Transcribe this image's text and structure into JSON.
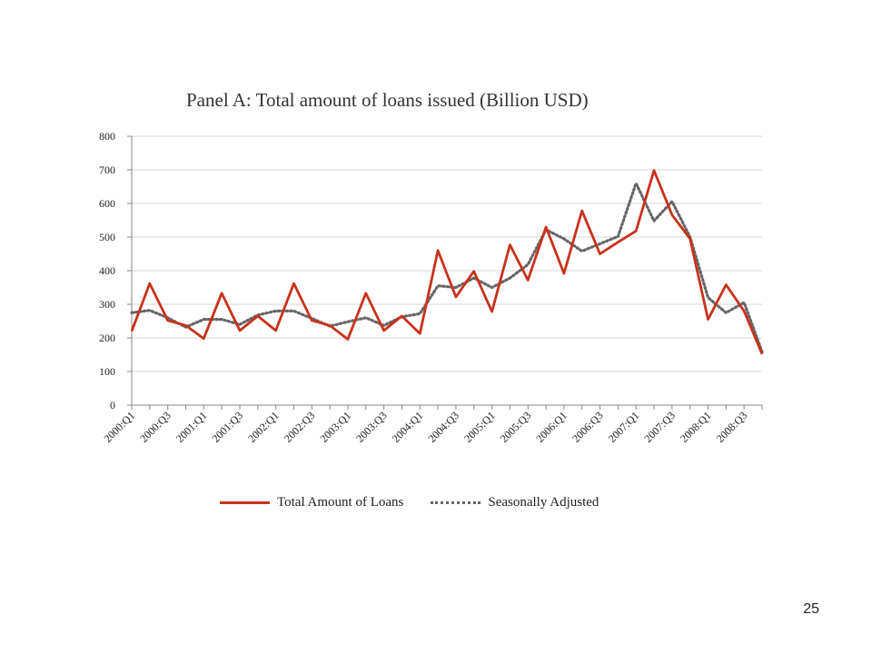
{
  "page_number": "25",
  "chart_data": {
    "type": "line",
    "title": "Panel A: Total amount of loans issued (Billion USD)",
    "xlabel": "",
    "ylabel": "",
    "ylim": [
      0,
      800
    ],
    "yticks": [
      0,
      100,
      200,
      300,
      400,
      500,
      600,
      700,
      800
    ],
    "grid": true,
    "legend_position": "bottom",
    "categories": [
      "2000:Q1",
      "2000:Q2",
      "2000:Q3",
      "2000:Q4",
      "2001:Q1",
      "2001:Q2",
      "2001:Q3",
      "2001:Q4",
      "2002:Q1",
      "2002:Q2",
      "2002:Q3",
      "2002:Q4",
      "2003:Q1",
      "2003:Q2",
      "2003:Q3",
      "2003:Q4",
      "2004:Q1",
      "2004:Q2",
      "2004:Q3",
      "2004:Q4",
      "2005:Q1",
      "2005:Q2",
      "2005:Q3",
      "2005:Q4",
      "2006:Q1",
      "2006:Q2",
      "2006:Q3",
      "2006:Q4",
      "2007:Q1",
      "2007:Q2",
      "2007:Q3",
      "2007:Q4",
      "2008:Q1",
      "2008:Q2",
      "2008:Q3",
      "2008:Q4"
    ],
    "tick_labels": [
      "2000:Q1",
      "2000:Q3",
      "2001:Q1",
      "2001:Q3",
      "2002:Q1",
      "2002:Q3",
      "2003:Q1",
      "2003:Q3",
      "2004:Q1",
      "2004:Q3",
      "2005:Q1",
      "2005:Q3",
      "2006:Q1",
      "2006:Q3",
      "2007:Q1",
      "2007:Q3",
      "2008:Q1",
      "2008:Q3"
    ],
    "series": [
      {
        "name": "Total Amount of Loans",
        "color": "#c8321e",
        "style": "solid",
        "values": [
          220,
          362,
          252,
          237,
          198,
          333,
          222,
          265,
          222,
          362,
          252,
          237,
          196,
          333,
          222,
          265,
          213,
          460,
          322,
          398,
          278,
          477,
          372,
          530,
          392,
          578,
          450,
          485,
          518,
          698,
          566,
          495,
          255,
          358,
          280,
          152
        ]
      },
      {
        "name": "Seasonally Adjusted",
        "color": "#666666",
        "style": "dotted",
        "values": [
          275,
          282,
          260,
          232,
          255,
          255,
          240,
          268,
          280,
          280,
          258,
          235,
          248,
          260,
          237,
          263,
          272,
          355,
          350,
          378,
          350,
          378,
          418,
          522,
          495,
          458,
          480,
          502,
          660,
          548,
          606,
          500,
          320,
          275,
          305,
          158
        ]
      }
    ]
  }
}
